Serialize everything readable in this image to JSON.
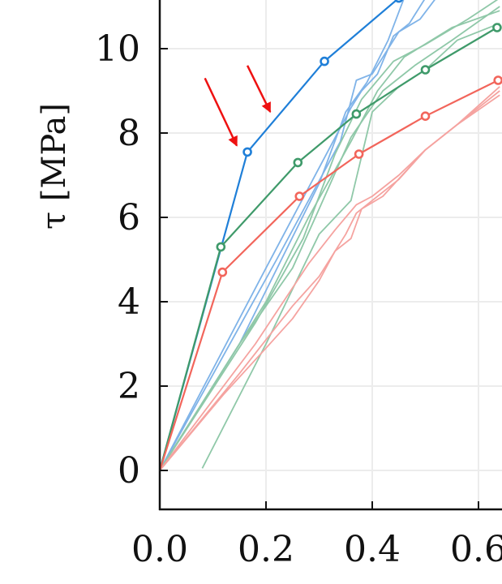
{
  "chart_data": {
    "type": "line",
    "title": "",
    "xlabel": "",
    "ylabel": "τ [MPa]",
    "xlim": [
      0.0,
      0.64
    ],
    "ylim": [
      -0.9,
      11.0
    ],
    "grid": true,
    "x_ticks": [
      0.0,
      0.2,
      0.4,
      0.6
    ],
    "x_tick_labels": [
      "0.0",
      "0.2",
      "0.4",
      "0.6"
    ],
    "y_ticks": [
      0,
      2,
      4,
      6,
      8,
      10
    ],
    "y_tick_labels": [
      "0",
      "2",
      "4",
      "6",
      "8",
      "10"
    ],
    "colors": {
      "blue": "#1f7fd8",
      "green": "#3f9a6a",
      "red": "#f2655b",
      "light_blue": "#7fb3e8",
      "light_green": "#8fc8a8",
      "light_red": "#f5a3a0",
      "arrow": "#ee1111",
      "grid": "#ececec",
      "axis": "#111111"
    },
    "series": [
      {
        "color": "blue",
        "marker": true,
        "x": [
          0.0,
          0.165,
          0.31,
          0.45
        ],
        "y": [
          0.0,
          7.55,
          9.7,
          11.2
        ]
      },
      {
        "color": "green",
        "marker": true,
        "x": [
          0.0,
          0.115,
          0.26,
          0.37,
          0.5,
          0.635
        ],
        "y": [
          0.0,
          5.3,
          7.3,
          8.45,
          9.5,
          10.5
        ]
      },
      {
        "color": "red",
        "marker": true,
        "x": [
          0.0,
          0.118,
          0.263,
          0.375,
          0.5,
          0.637
        ],
        "y": [
          0.0,
          4.7,
          6.5,
          7.5,
          8.4,
          9.25
        ]
      },
      {
        "color": "light_blue",
        "marker": false,
        "x": [
          0.0,
          0.2,
          0.36,
          0.38,
          0.41,
          0.44,
          0.47,
          0.5
        ],
        "y": [
          0.0,
          4.8,
          8.6,
          9.0,
          9.4,
          10.3,
          10.6,
          11.2
        ]
      },
      {
        "color": "light_blue",
        "marker": false,
        "x": [
          0.0,
          0.22,
          0.34,
          0.37,
          0.4,
          0.45,
          0.49,
          0.52
        ],
        "y": [
          0.0,
          5.0,
          7.8,
          9.25,
          9.4,
          10.4,
          10.7,
          11.2
        ]
      },
      {
        "color": "light_blue",
        "marker": false,
        "x": [
          0.0,
          0.15,
          0.3,
          0.35,
          0.39,
          0.43,
          0.46
        ],
        "y": [
          0.0,
          3.0,
          6.8,
          8.5,
          9.2,
          10.2,
          11.2
        ]
      },
      {
        "color": "light_green",
        "marker": false,
        "x": [
          0.08,
          0.2,
          0.3,
          0.36,
          0.4,
          0.45,
          0.5,
          0.56,
          0.64
        ],
        "y": [
          0.05,
          3.0,
          5.6,
          6.4,
          8.5,
          9.1,
          9.5,
          10.2,
          10.6
        ]
      },
      {
        "color": "light_green",
        "marker": false,
        "x": [
          0.0,
          0.15,
          0.25,
          0.3,
          0.36,
          0.42,
          0.48,
          0.55,
          0.64
        ],
        "y": [
          0.0,
          3.0,
          4.8,
          6.2,
          7.9,
          9.0,
          9.6,
          10.2,
          11.0
        ]
      },
      {
        "color": "light_green",
        "marker": false,
        "x": [
          0.0,
          0.18,
          0.27,
          0.33,
          0.38,
          0.44,
          0.5,
          0.58,
          0.64
        ],
        "y": [
          0.0,
          3.5,
          5.5,
          7.5,
          8.8,
          9.7,
          10.1,
          10.7,
          11.2
        ]
      },
      {
        "color": "light_green",
        "marker": false,
        "x": [
          0.0,
          0.2,
          0.28,
          0.36,
          0.41,
          0.46,
          0.55,
          0.64
        ],
        "y": [
          0.0,
          4.0,
          6.0,
          7.8,
          9.0,
          9.8,
          10.5,
          10.9
        ]
      },
      {
        "color": "light_red",
        "marker": false,
        "x": [
          0.0,
          0.12,
          0.2,
          0.25,
          0.3,
          0.33,
          0.36,
          0.38,
          0.42,
          0.5,
          0.56,
          0.64
        ],
        "y": [
          0.0,
          1.8,
          2.9,
          3.6,
          4.5,
          5.2,
          5.5,
          6.2,
          6.5,
          7.6,
          8.2,
          8.9
        ]
      },
      {
        "color": "light_red",
        "marker": false,
        "x": [
          0.0,
          0.15,
          0.25,
          0.3,
          0.35,
          0.37,
          0.4,
          0.45,
          0.5,
          0.55,
          0.64
        ],
        "y": [
          0.0,
          2.3,
          3.9,
          4.6,
          5.6,
          6.1,
          6.4,
          6.9,
          7.6,
          8.1,
          9.0
        ]
      },
      {
        "color": "light_red",
        "marker": false,
        "x": [
          0.0,
          0.18,
          0.28,
          0.33,
          0.37,
          0.4,
          0.45,
          0.5,
          0.56,
          0.64
        ],
        "y": [
          0.0,
          3.0,
          4.9,
          5.7,
          6.3,
          6.5,
          7.0,
          7.6,
          8.2,
          9.1
        ]
      }
    ],
    "annotations": [
      {
        "type": "arrow",
        "color": "arrow",
        "x_from": 0.085,
        "y_from": 9.3,
        "x_to": 0.145,
        "y_to": 7.7
      },
      {
        "type": "arrow",
        "color": "arrow",
        "x_from": 0.165,
        "y_from": 9.6,
        "x_to": 0.208,
        "y_to": 8.5
      }
    ]
  }
}
